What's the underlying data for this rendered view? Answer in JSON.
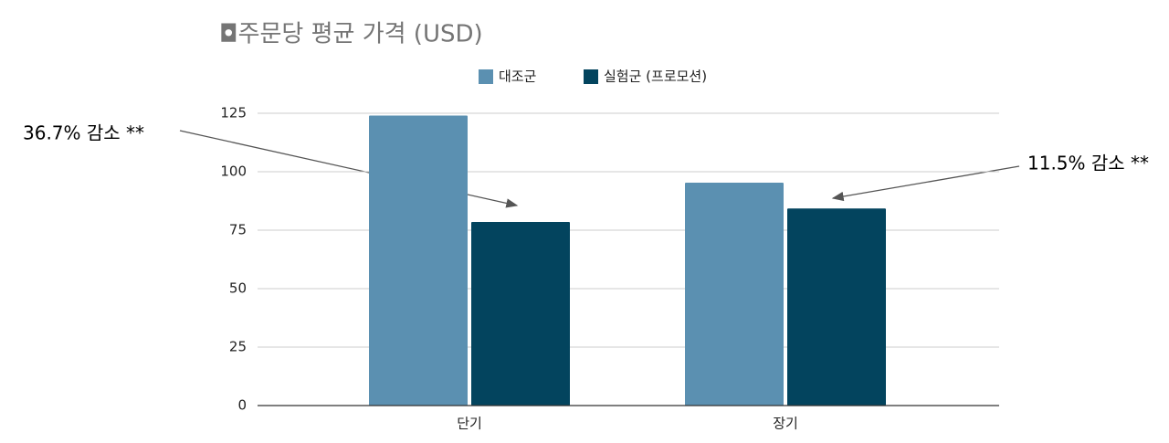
{
  "chart_data": {
    "type": "bar",
    "title": "◘주문당 평균 가격 (USD)",
    "categories": [
      "단기",
      "장기"
    ],
    "series": [
      {
        "name": "대조군",
        "color": "#5b90b1",
        "values": [
          124,
          95.3
        ]
      },
      {
        "name": "실험군 (프로모션)",
        "color": "#03445e",
        "values": [
          78.5,
          84.3
        ]
      }
    ],
    "ylim": [
      0,
      125
    ],
    "yticks": [
      0,
      25,
      50,
      75,
      100,
      125
    ],
    "grid": true,
    "legend": "top",
    "annotations": [
      {
        "text": "36.7% 감소 **"
      },
      {
        "text": "11.5% 감소 **"
      }
    ]
  }
}
